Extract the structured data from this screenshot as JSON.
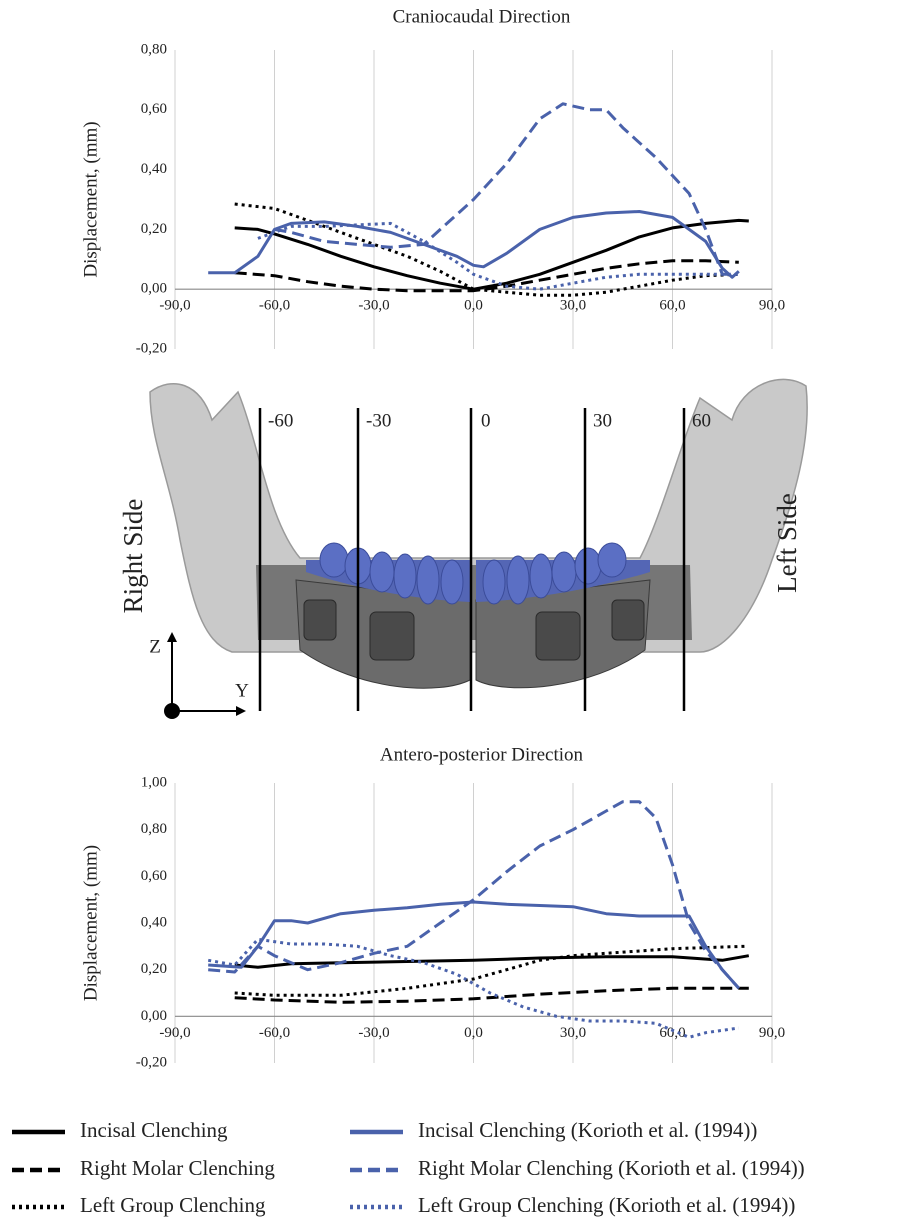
{
  "chart_data": [
    {
      "type": "line",
      "title": "Craniocaudal Direction",
      "y_label": "Displacement, (mm)",
      "xlim": [
        -90,
        90
      ],
      "ylim": [
        -0.2,
        0.8
      ],
      "grid": true,
      "xticks": [
        {
          "value": -90,
          "label": "-90,0"
        },
        {
          "value": -60,
          "label": "-60,0"
        },
        {
          "value": -30,
          "label": "-30,0"
        },
        {
          "value": 0,
          "label": "0,0"
        },
        {
          "value": 30,
          "label": "30,0"
        },
        {
          "value": 60,
          "label": "60,0"
        },
        {
          "value": 90,
          "label": "90,0"
        }
      ],
      "yticks": [
        {
          "value": -0.2,
          "label": "-0,20"
        },
        {
          "value": 0,
          "label": "0,00"
        },
        {
          "value": 0.2,
          "label": "0,20"
        },
        {
          "value": 0.4,
          "label": "0,40"
        },
        {
          "value": 0.6,
          "label": "0,60"
        },
        {
          "value": 0.8,
          "label": "0,80"
        }
      ],
      "series": [
        {
          "name": "Incisal Clenching",
          "color": "#000000",
          "dash": "solid",
          "x": [
            -72,
            -65,
            -60,
            -50,
            -40,
            -30,
            -20,
            -10,
            0,
            10,
            20,
            30,
            40,
            50,
            60,
            70,
            80,
            83
          ],
          "values": [
            0.205,
            0.2,
            0.185,
            0.15,
            0.11,
            0.075,
            0.045,
            0.02,
            0.0,
            0.02,
            0.05,
            0.09,
            0.13,
            0.175,
            0.205,
            0.22,
            0.23,
            0.228
          ]
        },
        {
          "name": "Right Molar Clenching",
          "color": "#000000",
          "dash": "dashed",
          "x": [
            -72,
            -60,
            -50,
            -40,
            -30,
            -20,
            -10,
            0,
            10,
            20,
            30,
            40,
            50,
            60,
            70,
            80
          ],
          "values": [
            0.055,
            0.045,
            0.025,
            0.01,
            0.0,
            -0.005,
            -0.005,
            -0.005,
            0.01,
            0.03,
            0.05,
            0.07,
            0.085,
            0.095,
            0.095,
            0.09
          ]
        },
        {
          "name": "Left Group Clenching",
          "color": "#000000",
          "dash": "dotted",
          "x": [
            -72,
            -60,
            -50,
            -40,
            -30,
            -20,
            -10,
            0,
            10,
            20,
            30,
            40,
            50,
            60,
            70,
            80
          ],
          "values": [
            0.285,
            0.27,
            0.23,
            0.19,
            0.15,
            0.11,
            0.06,
            0.0,
            -0.01,
            -0.02,
            -0.02,
            -0.01,
            0.01,
            0.03,
            0.045,
            0.05
          ]
        },
        {
          "name": "Incisal Clenching (Korioth et al. (1994))",
          "color": "#4a62ab",
          "dash": "solid",
          "x": [
            -80,
            -72,
            -65,
            -60,
            -55,
            -45,
            -35,
            -25,
            -15,
            -5,
            0,
            3,
            10,
            20,
            30,
            40,
            50,
            60,
            70,
            75,
            78,
            80
          ],
          "values": [
            0.055,
            0.055,
            0.11,
            0.2,
            0.22,
            0.225,
            0.21,
            0.19,
            0.15,
            0.11,
            0.08,
            0.075,
            0.12,
            0.2,
            0.24,
            0.255,
            0.26,
            0.24,
            0.16,
            0.07,
            0.04,
            0.06
          ]
        },
        {
          "name": "Right Molar Clenching (Korioth et al. (1994))",
          "color": "#4a62ab",
          "dash": "dashed",
          "x": [
            -60,
            -55,
            -45,
            -35,
            -25,
            -15,
            -10,
            0,
            10,
            20,
            27,
            35,
            40,
            45,
            55,
            65,
            70,
            75,
            78
          ],
          "values": [
            0.2,
            0.19,
            0.16,
            0.15,
            0.14,
            0.15,
            0.2,
            0.3,
            0.42,
            0.57,
            0.62,
            0.6,
            0.6,
            0.54,
            0.44,
            0.32,
            0.2,
            0.05,
            0.05
          ]
        },
        {
          "name": "Left Group Clenching (Korioth et al. (1994))",
          "color": "#4a62ab",
          "dash": "dotted",
          "x": [
            -65,
            -55,
            -45,
            -35,
            -25,
            -15,
            -5,
            0,
            10,
            20,
            30,
            40,
            50,
            60,
            70,
            80
          ],
          "values": [
            0.17,
            0.21,
            0.21,
            0.215,
            0.22,
            0.16,
            0.09,
            0.05,
            0.01,
            0.0,
            0.02,
            0.04,
            0.05,
            0.05,
            0.05,
            0.05
          ]
        }
      ]
    },
    {
      "type": "line",
      "title": "Antero-posterior Direction",
      "y_label": "Displacement, (mm)",
      "xlim": [
        -90,
        90
      ],
      "ylim": [
        -0.2,
        1.0
      ],
      "grid": true,
      "xticks": [
        {
          "value": -90,
          "label": "-90,0"
        },
        {
          "value": -60,
          "label": "-60,0"
        },
        {
          "value": -30,
          "label": "-30,0"
        },
        {
          "value": 0,
          "label": "0,0"
        },
        {
          "value": 30,
          "label": "30,0"
        },
        {
          "value": 60,
          "label": "60,0"
        },
        {
          "value": 90,
          "label": "90,0"
        }
      ],
      "yticks": [
        {
          "value": -0.2,
          "label": "-0,20"
        },
        {
          "value": 0,
          "label": "0,00"
        },
        {
          "value": 0.2,
          "label": "0,20"
        },
        {
          "value": 0.4,
          "label": "0,40"
        },
        {
          "value": 0.6,
          "label": "0,60"
        },
        {
          "value": 0.8,
          "label": "0,80"
        },
        {
          "value": 1.0,
          "label": "1,00"
        }
      ],
      "series": [
        {
          "color": "#000000",
          "dash": "solid",
          "x": [
            -72,
            -65,
            -55,
            -40,
            -20,
            0,
            20,
            40,
            60,
            75,
            83
          ],
          "values": [
            0.22,
            0.21,
            0.225,
            0.23,
            0.235,
            0.24,
            0.25,
            0.255,
            0.255,
            0.24,
            0.26
          ]
        },
        {
          "color": "#000000",
          "dash": "dashed",
          "x": [
            -72,
            -60,
            -40,
            -20,
            0,
            20,
            40,
            60,
            83
          ],
          "values": [
            0.08,
            0.07,
            0.06,
            0.065,
            0.075,
            0.095,
            0.11,
            0.12,
            0.12
          ]
        },
        {
          "color": "#000000",
          "dash": "dotted",
          "x": [
            -72,
            -60,
            -40,
            -20,
            0,
            10,
            20,
            30,
            40,
            60,
            82
          ],
          "values": [
            0.1,
            0.09,
            0.09,
            0.12,
            0.16,
            0.2,
            0.24,
            0.26,
            0.27,
            0.29,
            0.3
          ]
        },
        {
          "color": "#4a62ab",
          "dash": "solid",
          "x": [
            -80,
            -70,
            -65,
            -60,
            -55,
            -50,
            -40,
            -30,
            -20,
            -10,
            0,
            10,
            20,
            30,
            40,
            50,
            60,
            65,
            70,
            75,
            80
          ],
          "values": [
            0.22,
            0.21,
            0.3,
            0.41,
            0.41,
            0.4,
            0.44,
            0.455,
            0.465,
            0.48,
            0.49,
            0.48,
            0.475,
            0.47,
            0.44,
            0.43,
            0.43,
            0.43,
            0.3,
            0.2,
            0.12
          ]
        },
        {
          "color": "#4a62ab",
          "dash": "dashed",
          "x": [
            -80,
            -72,
            -65,
            -60,
            -50,
            -40,
            -30,
            -20,
            -10,
            0,
            10,
            20,
            30,
            40,
            45,
            50,
            55,
            60,
            65,
            70,
            75,
            80
          ],
          "values": [
            0.2,
            0.19,
            0.3,
            0.26,
            0.2,
            0.23,
            0.27,
            0.3,
            0.4,
            0.5,
            0.62,
            0.73,
            0.8,
            0.88,
            0.92,
            0.92,
            0.85,
            0.65,
            0.4,
            0.28,
            0.2,
            0.12
          ]
        },
        {
          "color": "#4a62ab",
          "dash": "dotted",
          "x": [
            -80,
            -72,
            -65,
            -55,
            -45,
            -35,
            -25,
            -15,
            -5,
            5,
            15,
            25,
            35,
            45,
            55,
            65,
            70,
            80
          ],
          "values": [
            0.24,
            0.22,
            0.33,
            0.31,
            0.31,
            0.3,
            0.26,
            0.23,
            0.18,
            0.1,
            0.04,
            0.0,
            -0.02,
            -0.02,
            -0.03,
            -0.09,
            -0.07,
            -0.05
          ]
        }
      ]
    }
  ],
  "diagram": {
    "section_labels": [
      "-60",
      "-30",
      "0",
      "30",
      "60"
    ],
    "right_side": "Right Side",
    "left_side": "Left Side",
    "axis_z": "Z",
    "axis_y": "Y"
  }
}
